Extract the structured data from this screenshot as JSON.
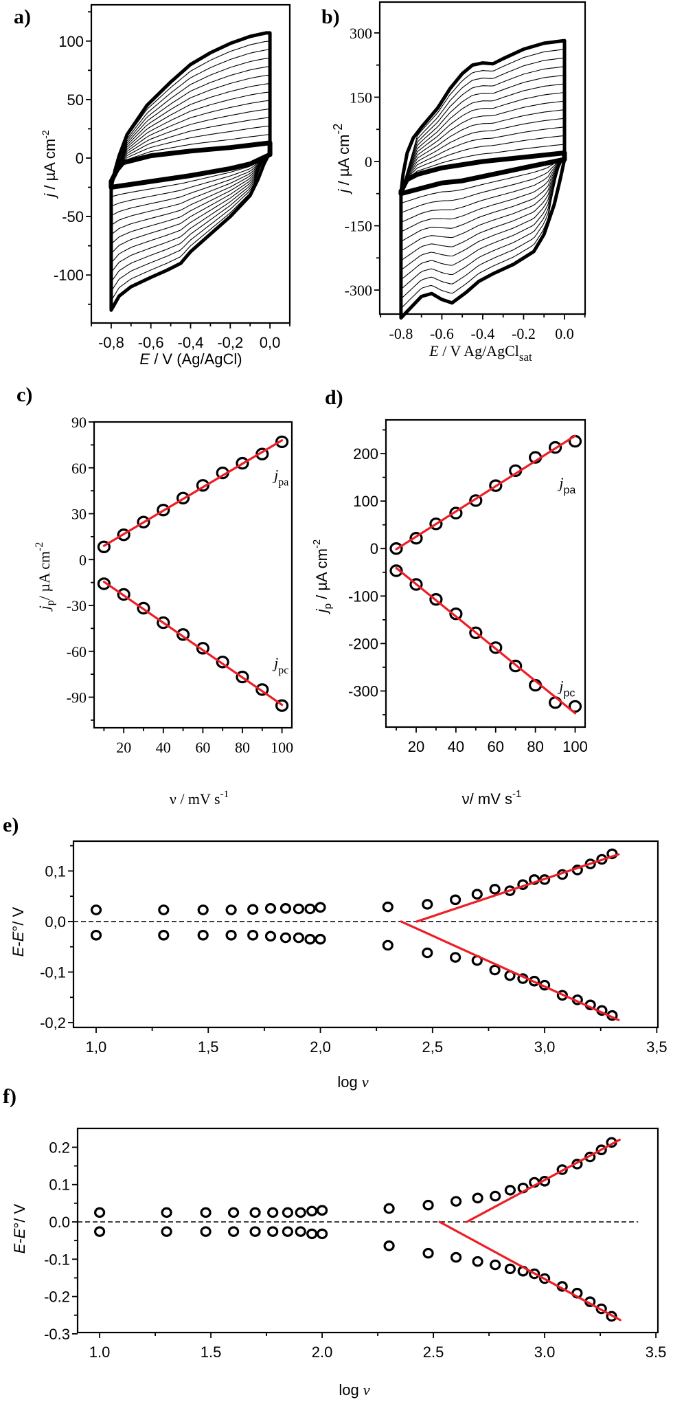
{
  "figure": {
    "panels": [
      "a)",
      "b)",
      "c)",
      "d)",
      "e)",
      "f)"
    ]
  },
  "chart_data": [
    {
      "id": "a",
      "type": "line",
      "panel_label": "a)",
      "title": "",
      "xlabel": "E / V (Ag/AgCl)",
      "ylabel": "j / µA cm-2",
      "xlim": [
        -0.9,
        0.1
      ],
      "ylim": [
        -141,
        131
      ],
      "xticks": [
        -0.8,
        -0.6,
        -0.4,
        -0.2,
        0.0
      ],
      "xtick_labels": [
        "-0,8",
        "-0,6",
        "-0,4",
        "-0,2",
        "0,0"
      ],
      "xminor": [
        -0.9,
        -0.7,
        -0.5,
        -0.3,
        -0.1,
        0.1
      ],
      "yticks": [
        100,
        50,
        0,
        -50,
        -100
      ],
      "ytick_labels": [
        "100",
        "50",
        "0",
        "-50",
        "-100"
      ],
      "yminor": [
        125,
        75,
        25,
        -25,
        -75,
        -125
      ],
      "grid": false,
      "n_intermediate_cycles": 12,
      "description": "Cyclic voltammograms at increasing scan rates; thick inner curve = slowest, thick outer curve = fastest",
      "series": [
        {
          "name": "outer-anodic",
          "x": [
            -0.8,
            -0.78,
            -0.76,
            -0.72,
            -0.62,
            -0.5,
            -0.4,
            -0.3,
            -0.2,
            -0.1,
            -0.02,
            0.0
          ],
          "y": [
            -25,
            -10,
            2,
            20,
            45,
            65,
            80,
            90,
            98,
            104,
            107,
            107
          ]
        },
        {
          "name": "outer-cathodic",
          "x": [
            0.0,
            -0.03,
            -0.06,
            -0.1,
            -0.2,
            -0.3,
            -0.4,
            -0.45,
            -0.52,
            -0.6,
            -0.7,
            -0.76,
            -0.8
          ],
          "y": [
            5,
            -5,
            -18,
            -32,
            -50,
            -65,
            -80,
            -90,
            -96,
            -102,
            -110,
            -118,
            -130
          ]
        },
        {
          "name": "inner-anodic",
          "x": [
            -0.8,
            -0.77,
            -0.74,
            -0.6,
            -0.4,
            -0.2,
            0.0
          ],
          "y": [
            -20,
            -10,
            -4,
            2,
            6,
            9,
            13
          ]
        },
        {
          "name": "inner-cathodic",
          "x": [
            0.0,
            -0.1,
            -0.2,
            -0.4,
            -0.6,
            -0.8
          ],
          "y": [
            3,
            -5,
            -9,
            -15,
            -20,
            -25
          ]
        }
      ]
    },
    {
      "id": "b",
      "type": "line",
      "panel_label": "b)",
      "title": "",
      "xlabel": "E / V Ag/AgCl",
      "xlabel_sub": "sat",
      "ylabel": "j / µA cm-2",
      "xlim": [
        -0.904,
        0.101
      ],
      "ylim": [
        -356,
        372
      ],
      "xticks": [
        -0.8,
        -0.6,
        -0.4,
        -0.2,
        0.0
      ],
      "xtick_labels": [
        "-0.8",
        "-0.6",
        "-0.4",
        "-0.2",
        "0.0"
      ],
      "xminor": [
        -0.9,
        -0.7,
        -0.5,
        -0.3,
        -0.1,
        0.1
      ],
      "yticks": [
        300,
        150,
        0,
        -150,
        -300
      ],
      "ytick_labels": [
        "300",
        "150",
        "0",
        "-150",
        "-300"
      ],
      "yminor": [
        225,
        75,
        -75,
        -225,
        -375
      ],
      "grid": false,
      "n_intermediate_cycles": 12,
      "description": "Cyclic voltammograms at increasing scan rates; thick inner curve = slowest, thick outer curve = fastest",
      "series": [
        {
          "name": "outer-anodic",
          "x": [
            -0.8,
            -0.79,
            -0.77,
            -0.74,
            -0.7,
            -0.62,
            -0.56,
            -0.5,
            -0.45,
            -0.4,
            -0.35,
            -0.3,
            -0.2,
            -0.1,
            0.0
          ],
          "y": [
            -75,
            -30,
            20,
            55,
            80,
            125,
            170,
            205,
            225,
            230,
            228,
            240,
            262,
            276,
            282
          ]
        },
        {
          "name": "outer-cathodic",
          "x": [
            0.0,
            -0.02,
            -0.05,
            -0.1,
            -0.15,
            -0.25,
            -0.35,
            -0.42,
            -0.48,
            -0.55,
            -0.6,
            -0.65,
            -0.7,
            -0.76,
            -0.8
          ],
          "y": [
            5,
            -40,
            -100,
            -170,
            -210,
            -240,
            -262,
            -280,
            -305,
            -330,
            -322,
            -308,
            -315,
            -345,
            -365
          ]
        },
        {
          "name": "inner-anodic",
          "x": [
            -0.8,
            -0.77,
            -0.72,
            -0.6,
            -0.4,
            -0.2,
            0.0
          ],
          "y": [
            -70,
            -42,
            -30,
            -15,
            0,
            10,
            20
          ]
        },
        {
          "name": "inner-cathodic",
          "x": [
            0.0,
            -0.2,
            -0.4,
            -0.5,
            -0.6,
            -0.8
          ],
          "y": [
            5,
            -15,
            -35,
            -45,
            -50,
            -75
          ]
        }
      ]
    },
    {
      "id": "c",
      "type": "scatter",
      "panel_label": "c)",
      "title": "",
      "xlabel": "ν / mV s-1",
      "ylabel": "jp / µA cm-2",
      "xlim": [
        5,
        105
      ],
      "ylim": [
        -110,
        90
      ],
      "xticks": [
        20,
        40,
        60,
        80,
        100
      ],
      "xtick_labels": [
        "20",
        "40",
        "60",
        "80",
        "100"
      ],
      "xminor": [
        10,
        30,
        50,
        70,
        90
      ],
      "yticks": [
        90,
        60,
        30,
        0,
        -30,
        -60,
        -90
      ],
      "ytick_labels": [
        "90",
        "60",
        "30",
        "0",
        "-30",
        "-60",
        "-90"
      ],
      "yminor": [
        75,
        45,
        15,
        -15,
        -45,
        -75,
        -105
      ],
      "grid": false,
      "annotations": [
        {
          "text": "j",
          "sub": "pa",
          "x": 96,
          "y": 52
        },
        {
          "text": "j",
          "sub": "pc",
          "x": 96,
          "y": -71
        }
      ],
      "series": [
        {
          "name": "jpa",
          "x": [
            10,
            20,
            30,
            40,
            50,
            60,
            70,
            80,
            90,
            100
          ],
          "y": [
            8.3,
            16.2,
            24.5,
            32.4,
            40.2,
            48.5,
            56.7,
            63,
            69,
            77
          ]
        },
        {
          "name": "jpc",
          "x": [
            10,
            20,
            30,
            40,
            50,
            60,
            70,
            80,
            90,
            100
          ],
          "y": [
            -15.8,
            -22.8,
            -31.8,
            -41.3,
            -49,
            -58,
            -67,
            -76.8,
            -85,
            -95.5
          ]
        }
      ],
      "fits": [
        {
          "name": "jpa-fit",
          "x": [
            10,
            100
          ],
          "y": [
            9,
            78
          ]
        },
        {
          "name": "jpc-fit",
          "x": [
            10,
            100
          ],
          "y": [
            -14.5,
            -95
          ]
        }
      ]
    },
    {
      "id": "d",
      "type": "scatter",
      "panel_label": "d)",
      "title": "",
      "xlabel": "ν/ mV s-1",
      "ylabel": "jp / µA cm-2",
      "xlim": [
        4.8,
        105
      ],
      "ylim": [
        -376,
        271
      ],
      "xticks": [
        20,
        40,
        60,
        80,
        100
      ],
      "xtick_labels": [
        "20",
        "40",
        "60",
        "80",
        "100"
      ],
      "xminor": [
        10,
        30,
        50,
        70,
        90
      ],
      "yticks": [
        200,
        100,
        0,
        -100,
        -200,
        -300
      ],
      "ytick_labels": [
        "200",
        "100",
        "0",
        "-100",
        "-200",
        "-300"
      ],
      "yminor": [
        250,
        150,
        50,
        -50,
        -150,
        -250,
        -350
      ],
      "grid": false,
      "annotations": [
        {
          "text": "j",
          "sub": "pa",
          "x": 92,
          "y": 128
        },
        {
          "text": "j",
          "sub": "pc",
          "x": 92,
          "y": -300
        }
      ],
      "series": [
        {
          "name": "jpa",
          "x": [
            10,
            20,
            30,
            40,
            50,
            60,
            70,
            80,
            90,
            100
          ],
          "y": [
            0,
            21.7,
            52,
            74.7,
            101,
            132.5,
            164,
            192,
            213,
            226
          ]
        },
        {
          "name": "jpc",
          "x": [
            10,
            20,
            30,
            40,
            50,
            60,
            70,
            80,
            90,
            100
          ],
          "y": [
            -46.7,
            -75.6,
            -107,
            -137.4,
            -177.4,
            -208.7,
            -247.3,
            -287.8,
            -324.4,
            -332.4
          ]
        }
      ],
      "fits": [
        {
          "name": "jpa-fit",
          "x": [
            10,
            100
          ],
          "y": [
            -1.4,
            237.5
          ]
        },
        {
          "name": "jpc-fit",
          "x": [
            10,
            100
          ],
          "y": [
            -41,
            -346.8
          ]
        }
      ]
    },
    {
      "id": "e",
      "type": "scatter",
      "panel_label": "e)",
      "title": "",
      "xlabel": "log v",
      "ylabel": "E-E° / V",
      "xlim": [
        0.899,
        3.505
      ],
      "ylim": [
        -0.2095,
        0.159
      ],
      "xticks": [
        1.0,
        1.5,
        2.0,
        2.5,
        3.0,
        3.5
      ],
      "xtick_labels": [
        "1,0",
        "1,5",
        "2,0",
        "2,5",
        "3,0",
        "3,5"
      ],
      "xminor": [
        1.25,
        1.75,
        2.25,
        2.75,
        3.25
      ],
      "yticks": [
        0.1,
        0.0,
        -0.1,
        -0.2
      ],
      "ytick_labels": [
        "0,1",
        "0,0",
        "-0,1",
        "-0,2"
      ],
      "yminor": [
        0.15,
        0.05,
        -0.05,
        -0.15
      ],
      "grid": false,
      "reference_line": {
        "y": 0,
        "style": "dashed"
      },
      "series": [
        {
          "name": "anodic",
          "x": [
            1.0,
            1.301,
            1.477,
            1.602,
            1.699,
            1.778,
            1.845,
            1.903,
            1.954,
            2.0,
            2.301,
            2.477,
            2.602,
            2.699,
            2.778,
            2.845,
            2.903,
            2.954,
            3.0,
            3.079,
            3.146,
            3.204,
            3.255,
            3.301
          ],
          "y": [
            0.023,
            0.023,
            0.023,
            0.023,
            0.024,
            0.026,
            0.026,
            0.025,
            0.025,
            0.028,
            0.029,
            0.034,
            0.043,
            0.054,
            0.064,
            0.061,
            0.073,
            0.083,
            0.083,
            0.093,
            0.102,
            0.114,
            0.123,
            0.134
          ]
        },
        {
          "name": "cathodic",
          "x": [
            1.0,
            1.301,
            1.477,
            1.602,
            1.699,
            1.778,
            1.845,
            1.903,
            1.954,
            2.0,
            2.301,
            2.477,
            2.602,
            2.699,
            2.778,
            2.845,
            2.903,
            2.954,
            3.0,
            3.079,
            3.146,
            3.204,
            3.255,
            3.301
          ],
          "y": [
            -0.027,
            -0.027,
            -0.027,
            -0.027,
            -0.027,
            -0.029,
            -0.032,
            -0.032,
            -0.035,
            -0.035,
            -0.047,
            -0.062,
            -0.071,
            -0.077,
            -0.096,
            -0.107,
            -0.113,
            -0.118,
            -0.126,
            -0.146,
            -0.155,
            -0.165,
            -0.176,
            -0.186
          ]
        }
      ],
      "fits": [
        {
          "name": "anodic-fit",
          "x": [
            2.43,
            3.33
          ],
          "y": [
            0.0,
            0.133
          ]
        },
        {
          "name": "cathodic-fit",
          "x": [
            2.36,
            3.33
          ],
          "y": [
            0.0,
            -0.195
          ]
        }
      ]
    },
    {
      "id": "f",
      "type": "scatter",
      "panel_label": "f )",
      "title": "",
      "xlabel": "log v",
      "ylabel": "E-E° / V",
      "xlim": [
        0.901,
        3.509
      ],
      "ylim": [
        -0.2965,
        0.2505
      ],
      "xticks": [
        1.0,
        1.5,
        2.0,
        2.5,
        3.0,
        3.5
      ],
      "xtick_labels": [
        "1.0",
        "1.5",
        "2.0",
        "2.5",
        "3.0",
        "3.5"
      ],
      "xminor": [
        1.25,
        1.75,
        2.25,
        2.75,
        3.25
      ],
      "yticks": [
        0.2,
        0.1,
        0.0,
        -0.1,
        -0.2,
        -0.3
      ],
      "ytick_labels": [
        "0.2",
        "0.1",
        "0.0",
        "-0.1",
        "-0.2",
        "-0.3"
      ],
      "yminor": [
        0.15,
        0.05,
        -0.05,
        -0.15,
        -0.25
      ],
      "grid": false,
      "reference_line": {
        "y": 0,
        "style": "dashed",
        "x_end": 3.42
      },
      "series": [
        {
          "name": "anodic",
          "x": [
            1.0,
            1.301,
            1.477,
            1.602,
            1.699,
            1.778,
            1.845,
            1.903,
            1.954,
            2.0,
            2.301,
            2.477,
            2.602,
            2.699,
            2.778,
            2.845,
            2.903,
            2.954,
            3.0,
            3.079,
            3.146,
            3.204,
            3.255,
            3.301
          ],
          "y": [
            0.025,
            0.025,
            0.025,
            0.025,
            0.025,
            0.025,
            0.025,
            0.025,
            0.029,
            0.031,
            0.036,
            0.045,
            0.055,
            0.064,
            0.069,
            0.085,
            0.091,
            0.106,
            0.109,
            0.14,
            0.155,
            0.174,
            0.193,
            0.213
          ]
        },
        {
          "name": "cathodic",
          "x": [
            1.0,
            1.301,
            1.477,
            1.602,
            1.699,
            1.778,
            1.845,
            1.903,
            1.954,
            2.0,
            2.301,
            2.477,
            2.602,
            2.699,
            2.778,
            2.845,
            2.903,
            2.954,
            3.0,
            3.079,
            3.146,
            3.204,
            3.255,
            3.301
          ],
          "y": [
            -0.026,
            -0.026,
            -0.026,
            -0.026,
            -0.026,
            -0.026,
            -0.026,
            -0.026,
            -0.032,
            -0.032,
            -0.064,
            -0.084,
            -0.095,
            -0.106,
            -0.115,
            -0.126,
            -0.132,
            -0.139,
            -0.152,
            -0.173,
            -0.191,
            -0.214,
            -0.233,
            -0.253
          ]
        }
      ],
      "fits": [
        {
          "name": "anodic-fit",
          "x": [
            2.65,
            3.337
          ],
          "y": [
            0.0,
            0.22
          ]
        },
        {
          "name": "cathodic-fit",
          "x": [
            2.528,
            3.34
          ],
          "y": [
            0.0,
            -0.263
          ]
        }
      ]
    }
  ]
}
